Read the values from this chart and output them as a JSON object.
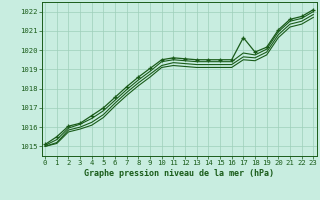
{
  "title": "Graphe pression niveau de la mer (hPa)",
  "x": [
    0,
    1,
    2,
    3,
    4,
    5,
    6,
    7,
    8,
    9,
    10,
    11,
    12,
    13,
    14,
    15,
    16,
    17,
    18,
    19,
    20,
    21,
    22,
    23
  ],
  "ylim": [
    1014.5,
    1022.5
  ],
  "xlim": [
    -0.3,
    23.3
  ],
  "yticks": [
    1015,
    1016,
    1017,
    1018,
    1019,
    1020,
    1021,
    1022
  ],
  "bg_color": "#c8ede0",
  "grid_color": "#9ecfba",
  "line_color": "#1a5c1a",
  "line1": [
    1015.1,
    1015.5,
    1016.05,
    1016.2,
    1016.6,
    1017.0,
    1017.55,
    1018.1,
    1018.6,
    1019.05,
    1019.5,
    1019.6,
    1019.55,
    1019.5,
    1019.5,
    1019.5,
    1019.5,
    1020.65,
    1019.9,
    1020.15,
    1021.05,
    1021.6,
    1021.75,
    1022.1
  ],
  "line2": [
    1015.05,
    1015.35,
    1015.95,
    1016.15,
    1016.45,
    1016.85,
    1017.4,
    1017.95,
    1018.45,
    1018.9,
    1019.4,
    1019.5,
    1019.45,
    1019.4,
    1019.4,
    1019.4,
    1019.4,
    1019.85,
    1019.75,
    1020.05,
    1020.95,
    1021.5,
    1021.65,
    1022.0
  ],
  "line3": [
    1015.0,
    1015.2,
    1015.85,
    1016.0,
    1016.25,
    1016.65,
    1017.25,
    1017.8,
    1018.3,
    1018.75,
    1019.2,
    1019.35,
    1019.3,
    1019.25,
    1019.25,
    1019.25,
    1019.25,
    1019.65,
    1019.6,
    1019.9,
    1020.8,
    1021.35,
    1021.5,
    1021.85
  ],
  "line4": [
    1015.0,
    1015.15,
    1015.75,
    1015.9,
    1016.1,
    1016.5,
    1017.1,
    1017.65,
    1018.15,
    1018.6,
    1019.1,
    1019.2,
    1019.15,
    1019.1,
    1019.1,
    1019.1,
    1019.1,
    1019.5,
    1019.45,
    1019.75,
    1020.65,
    1021.2,
    1021.35,
    1021.7
  ],
  "marker_line_idx": 0,
  "title_fontsize": 6.0,
  "tick_fontsize": 5.2
}
